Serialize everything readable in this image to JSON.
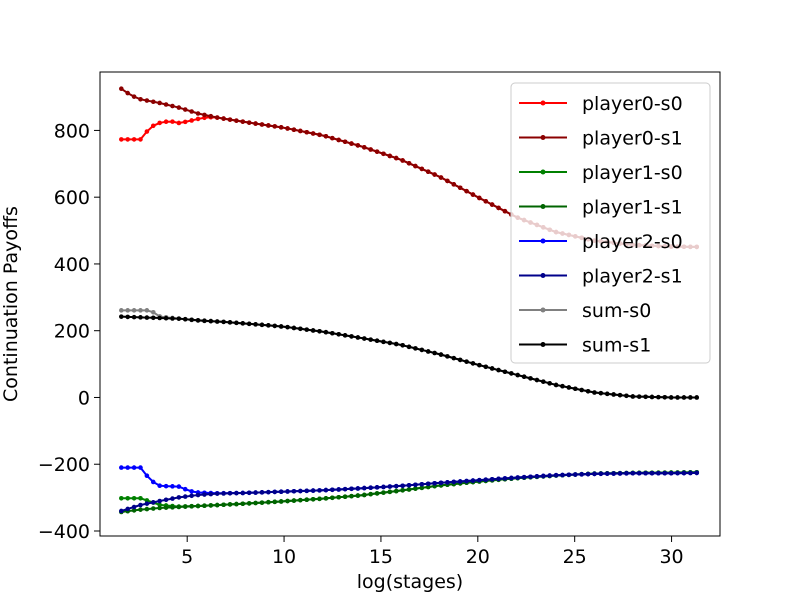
{
  "chart_data": {
    "type": "line",
    "title": "",
    "xlabel": "log(stages)",
    "ylabel": "Continuation Payoffs",
    "xlim": [
      0.5,
      32.5
    ],
    "ylim": [
      -415,
      975
    ],
    "x_ticks": [
      5,
      10,
      15,
      20,
      25,
      30
    ],
    "y_ticks": [
      -400,
      -200,
      0,
      200,
      400,
      600,
      800
    ],
    "x_tick_labels": [
      "5",
      "10",
      "15",
      "20",
      "25",
      "30"
    ],
    "y_tick_labels": [
      "−400",
      "−200",
      "0",
      "200",
      "400",
      "600",
      "800"
    ],
    "grid": false,
    "legend_position": "top-right",
    "series": [
      {
        "name": "player0-s0",
        "color": "#ff0000",
        "points": [
          [
            1.6,
            773
          ],
          [
            2.6,
            773
          ],
          [
            3.1,
            810
          ],
          [
            3.6,
            823
          ],
          [
            4.1,
            828
          ],
          [
            4.6,
            822
          ],
          [
            5.1,
            828
          ],
          [
            5.6,
            835
          ],
          [
            6.1,
            840
          ],
          [
            6.6,
            838
          ],
          [
            8,
            825
          ],
          [
            10,
            808
          ],
          [
            12,
            785
          ],
          [
            14,
            752
          ],
          [
            16,
            713
          ],
          [
            18,
            662
          ],
          [
            20,
            600
          ],
          [
            22,
            540
          ],
          [
            24,
            496
          ],
          [
            26,
            470
          ],
          [
            28,
            457
          ],
          [
            30,
            452
          ],
          [
            31.3,
            451
          ]
        ]
      },
      {
        "name": "player0-s1",
        "color": "#8b0000",
        "points": [
          [
            1.6,
            925
          ],
          [
            2.1,
            905
          ],
          [
            2.6,
            893
          ],
          [
            3.6,
            882
          ],
          [
            4.6,
            868
          ],
          [
            5.6,
            850
          ],
          [
            6.6,
            838
          ],
          [
            8,
            825
          ],
          [
            10,
            808
          ],
          [
            12,
            785
          ],
          [
            14,
            752
          ],
          [
            16,
            713
          ],
          [
            18,
            662
          ],
          [
            20,
            600
          ],
          [
            22,
            540
          ],
          [
            24,
            496
          ],
          [
            26,
            470
          ],
          [
            28,
            457
          ],
          [
            30,
            452
          ],
          [
            31.3,
            451
          ]
        ]
      },
      {
        "name": "player1-s0",
        "color": "#008000",
        "points": [
          [
            1.6,
            -302
          ],
          [
            2.6,
            -302
          ],
          [
            3.1,
            -312
          ],
          [
            3.6,
            -322
          ],
          [
            4.6,
            -327
          ],
          [
            6,
            -324
          ],
          [
            8,
            -318
          ],
          [
            10,
            -311
          ],
          [
            12,
            -303
          ],
          [
            14,
            -293
          ],
          [
            16,
            -279
          ],
          [
            18,
            -264
          ],
          [
            20,
            -252
          ],
          [
            22,
            -242
          ],
          [
            24,
            -234
          ],
          [
            26,
            -228
          ],
          [
            28,
            -226
          ],
          [
            30,
            -225
          ],
          [
            31.3,
            -224
          ]
        ]
      },
      {
        "name": "player1-s1",
        "color": "#006400",
        "points": [
          [
            1.6,
            -343
          ],
          [
            2.6,
            -336
          ],
          [
            3.6,
            -331
          ],
          [
            4.6,
            -328
          ],
          [
            6,
            -324
          ],
          [
            8,
            -318
          ],
          [
            10,
            -311
          ],
          [
            12,
            -303
          ],
          [
            14,
            -293
          ],
          [
            16,
            -279
          ],
          [
            18,
            -264
          ],
          [
            20,
            -252
          ],
          [
            22,
            -242
          ],
          [
            24,
            -234
          ],
          [
            26,
            -228
          ],
          [
            28,
            -226
          ],
          [
            30,
            -225
          ],
          [
            31.3,
            -224
          ]
        ]
      },
      {
        "name": "player2-s0",
        "color": "#0000ff",
        "points": [
          [
            1.6,
            -210
          ],
          [
            2.6,
            -210
          ],
          [
            3.1,
            -248
          ],
          [
            3.6,
            -265
          ],
          [
            4.6,
            -267
          ],
          [
            5.1,
            -280
          ],
          [
            5.6,
            -285
          ],
          [
            6.6,
            -287
          ],
          [
            8,
            -286
          ],
          [
            10,
            -282
          ],
          [
            12,
            -278
          ],
          [
            14,
            -272
          ],
          [
            16,
            -265
          ],
          [
            18,
            -256
          ],
          [
            20,
            -248
          ],
          [
            22,
            -240
          ],
          [
            24,
            -233
          ],
          [
            26,
            -229
          ],
          [
            28,
            -227
          ],
          [
            30,
            -227
          ],
          [
            31.3,
            -226
          ]
        ]
      },
      {
        "name": "player2-s1",
        "color": "#00008b",
        "points": [
          [
            1.6,
            -340
          ],
          [
            2.6,
            -322
          ],
          [
            3.6,
            -310
          ],
          [
            4.6,
            -299
          ],
          [
            5.6,
            -292
          ],
          [
            6.6,
            -288
          ],
          [
            8,
            -286
          ],
          [
            10,
            -282
          ],
          [
            12,
            -278
          ],
          [
            14,
            -272
          ],
          [
            16,
            -265
          ],
          [
            18,
            -256
          ],
          [
            20,
            -248
          ],
          [
            22,
            -240
          ],
          [
            24,
            -233
          ],
          [
            26,
            -229
          ],
          [
            28,
            -227
          ],
          [
            30,
            -227
          ],
          [
            31.3,
            -226
          ]
        ]
      },
      {
        "name": "sum-s0",
        "color": "#808080",
        "points": [
          [
            1.6,
            261
          ],
          [
            3.1,
            261
          ],
          [
            3.6,
            242
          ],
          [
            4.6,
            236
          ],
          [
            5.6,
            230
          ],
          [
            7,
            226
          ],
          [
            9,
            217
          ],
          [
            10,
            212
          ],
          [
            12,
            197
          ],
          [
            14,
            178
          ],
          [
            16,
            158
          ],
          [
            18,
            130
          ],
          [
            20,
            98
          ],
          [
            22,
            68
          ],
          [
            24,
            38
          ],
          [
            26,
            15
          ],
          [
            28,
            3
          ],
          [
            30,
            0
          ],
          [
            31.3,
            0
          ]
        ]
      },
      {
        "name": "sum-s1",
        "color": "#000000",
        "points": [
          [
            1.6,
            242
          ],
          [
            2.6,
            240
          ],
          [
            3.6,
            238
          ],
          [
            4.6,
            236
          ],
          [
            5.6,
            231
          ],
          [
            7,
            226
          ],
          [
            9,
            217
          ],
          [
            10,
            212
          ],
          [
            12,
            197
          ],
          [
            14,
            178
          ],
          [
            16,
            158
          ],
          [
            18,
            130
          ],
          [
            20,
            98
          ],
          [
            22,
            68
          ],
          [
            24,
            38
          ],
          [
            26,
            15
          ],
          [
            28,
            3
          ],
          [
            30,
            0
          ],
          [
            31.3,
            0
          ]
        ]
      }
    ]
  }
}
